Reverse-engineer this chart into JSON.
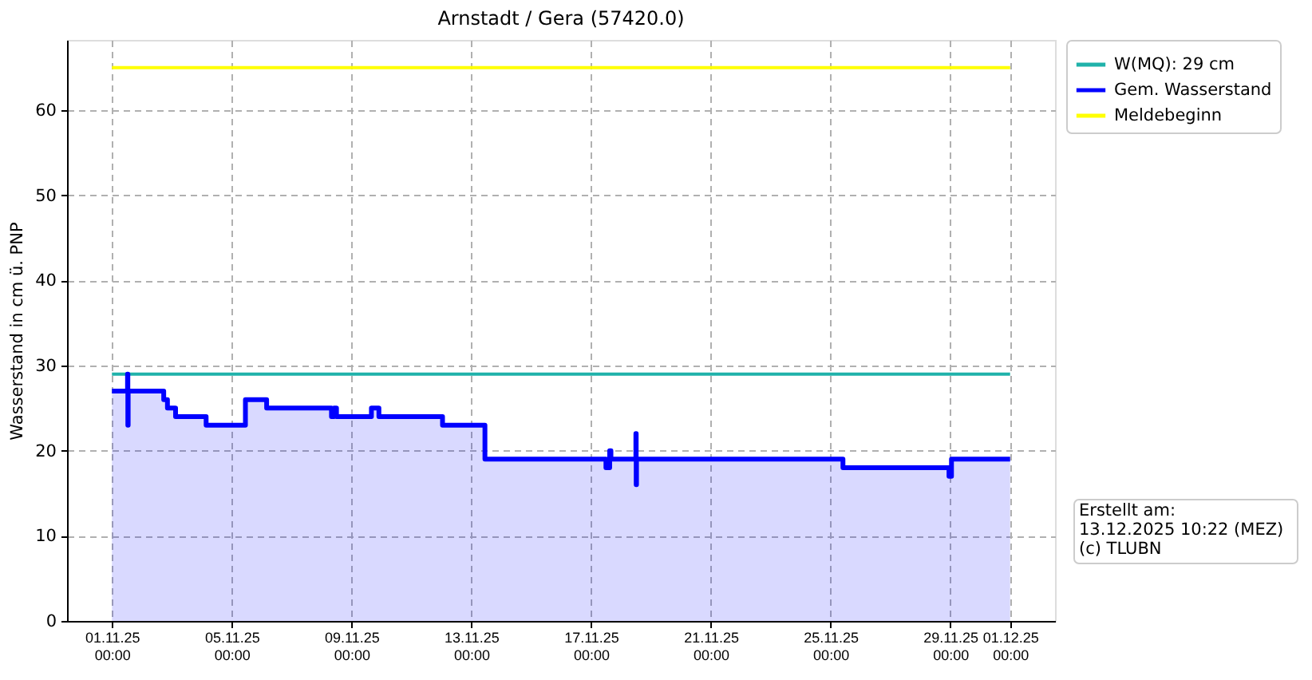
{
  "chart_data": {
    "type": "line",
    "title": "Arnstadt / Gera (57420.0)",
    "ylabel": "Wasserstand in cm ü. PNP",
    "xlim": [
      "2025-10-30T12:00",
      "2025-12-02T12:00"
    ],
    "xticks": [
      {
        "value": "2025-11-01T00:00",
        "label": "01.11.25\n00:00"
      },
      {
        "value": "2025-11-05T00:00",
        "label": "05.11.25\n00:00"
      },
      {
        "value": "2025-11-09T00:00",
        "label": "09.11.25\n00:00"
      },
      {
        "value": "2025-11-13T00:00",
        "label": "13.11.25\n00:00"
      },
      {
        "value": "2025-11-17T00:00",
        "label": "17.11.25\n00:00"
      },
      {
        "value": "2025-11-21T00:00",
        "label": "21.11.25\n00:00"
      },
      {
        "value": "2025-11-25T00:00",
        "label": "25.11.25\n00:00"
      },
      {
        "value": "2025-11-29T00:00",
        "label": "29.11.25\n00:00"
      },
      {
        "value": "2025-12-01T00:00",
        "label": "01.12.25\n00:00"
      }
    ],
    "ylim": [
      0,
      68.25
    ],
    "yticks": [
      0,
      10,
      20,
      30,
      40,
      50,
      60
    ],
    "grid": true,
    "legend": "right",
    "series": [
      {
        "name": "W(MQ): 29 cm",
        "color": "#20b2aa",
        "x": [
          "2025-11-01T00:00",
          "2025-12-01T00:00"
        ],
        "values": [
          29,
          29
        ]
      },
      {
        "name": "Gem. Wasserstand",
        "type": "area",
        "color": "#0000ff",
        "x": [
          "2025-11-01T00:00",
          "2025-11-01T12:30",
          "2025-11-01T12:30",
          "2025-11-01T12:45",
          "2025-11-01T12:45",
          "2025-11-01T13:00",
          "2025-11-01T13:00",
          "2025-11-02T17:30",
          "2025-11-02T17:30",
          "2025-11-02T20:30",
          "2025-11-02T20:30",
          "2025-11-03T03:00",
          "2025-11-03T03:00",
          "2025-11-04T03:30",
          "2025-11-04T03:30",
          "2025-11-05T11:00",
          "2025-11-05T11:00",
          "2025-11-06T04:00",
          "2025-11-06T04:00",
          "2025-11-08T08:00",
          "2025-11-08T08:00",
          "2025-11-08T10:00",
          "2025-11-08T10:00",
          "2025-11-08T12:00",
          "2025-11-08T12:00",
          "2025-11-09T16:00",
          "2025-11-09T16:00",
          "2025-11-09T22:00",
          "2025-11-09T22:00",
          "2025-11-12T01:00",
          "2025-11-12T01:00",
          "2025-11-13T11:00",
          "2025-11-13T11:00",
          "2025-11-17T12:00",
          "2025-11-17T12:00",
          "2025-11-17T15:00",
          "2025-11-17T15:00",
          "2025-11-17T16:00",
          "2025-11-17T16:00",
          "2025-11-18T12:00",
          "2025-11-18T12:00",
          "2025-11-18T12:15",
          "2025-11-18T12:15",
          "2025-11-18T12:30",
          "2025-11-18T12:30",
          "2025-11-25T10:00",
          "2025-11-25T10:00",
          "2025-11-28T23:00",
          "2025-11-28T23:00",
          "2025-11-29T01:00",
          "2025-11-29T01:00",
          "2025-12-01T00:00"
        ],
        "values": [
          27,
          27,
          29,
          29,
          23,
          23,
          27,
          27,
          26,
          26,
          25,
          25,
          24,
          24,
          23,
          23,
          26,
          26,
          25,
          25,
          24,
          24,
          25,
          25,
          24,
          24,
          25,
          25,
          24,
          24,
          23,
          23,
          19,
          19,
          18,
          18,
          20,
          20,
          19,
          19,
          22,
          22,
          16,
          16,
          19,
          19,
          18,
          18,
          17,
          17,
          19,
          19
        ]
      },
      {
        "name": "Meldebeginn",
        "color": "#ffff00",
        "x": [
          "2025-11-01T00:00",
          "2025-12-01T00:00"
        ],
        "values": [
          65,
          65
        ]
      }
    ],
    "annotations": [
      "Erstellt am:\n13.12.2025 10:22 (MEZ)\n(c) TLUBN"
    ]
  }
}
